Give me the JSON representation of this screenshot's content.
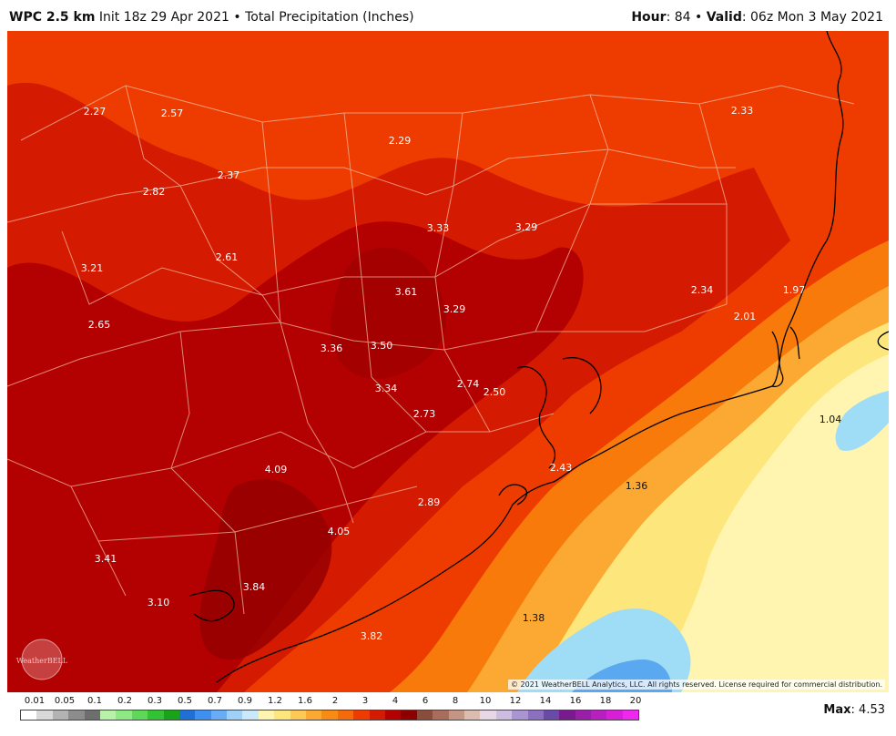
{
  "header": {
    "model": "WPC 2.5 km",
    "init": "Init 18z 29 Apr 2021",
    "bullet": "•",
    "field": "Total Precipitation (Inches)",
    "hour_label": "Hour",
    "hour_value": ": 84",
    "valid_label": "Valid",
    "valid_value": ": 06z Mon 3 May 2021"
  },
  "colors": {
    "dark_red": "#b30000",
    "red": "#d41a00",
    "orange_red": "#ee3b00",
    "orange": "#f77a0a",
    "light_orange": "#fba932",
    "yellow": "#fde77d",
    "pale_yellow": "#fff5b0",
    "light_blue": "#9fdcf5",
    "blue": "#5aa8f0",
    "county_line": "#f3c3a8",
    "coast": "#000000"
  },
  "map": {
    "icon": "precipitation-map",
    "values": [
      {
        "v": "2.27"
      },
      {
        "v": "2.57"
      },
      {
        "v": "2.29"
      },
      {
        "v": "2.33"
      },
      {
        "v": "2.37"
      },
      {
        "v": "2.82"
      },
      {
        "v": "3.33"
      },
      {
        "v": "3.29"
      },
      {
        "v": "3.21"
      },
      {
        "v": "2.61"
      },
      {
        "v": "3.61"
      },
      {
        "v": "3.29"
      },
      {
        "v": "2.34"
      },
      {
        "v": "1.97"
      },
      {
        "v": "2.01"
      },
      {
        "v": "2.65"
      },
      {
        "v": "3.36"
      },
      {
        "v": "3.50"
      },
      {
        "v": "3.34"
      },
      {
        "v": "2.74"
      },
      {
        "v": "2.50"
      },
      {
        "v": "2.73"
      },
      {
        "v": "1.04"
      },
      {
        "v": "4.09"
      },
      {
        "v": "2.43"
      },
      {
        "v": "1.36"
      },
      {
        "v": "2.89"
      },
      {
        "v": "4.05"
      },
      {
        "v": "3.41"
      },
      {
        "v": "3.84"
      },
      {
        "v": "3.10"
      },
      {
        "v": "1.38"
      },
      {
        "v": "3.82"
      }
    ]
  },
  "copyright": "© 2021 WeatherBELL Analytics, LLC. All rights reserved. License required for commercial distribution.",
  "logo_text": "WeatherBELL",
  "legend": {
    "ticks": [
      "0.01",
      "0.05",
      "0.1",
      "0.2",
      "0.3",
      "0.5",
      "0.7",
      "0.9",
      "1.2",
      "1.6",
      "2",
      "3",
      "4",
      "6",
      "8",
      "10",
      "12",
      "14",
      "16",
      "18",
      "20"
    ],
    "swatches": [
      "#ffffff",
      "#d9d9d9",
      "#b3b3b3",
      "#8c8c8c",
      "#6e6e6e",
      "#b8f2a8",
      "#8ee883",
      "#5fd85a",
      "#33c233",
      "#1aa31a",
      "#1f6fd6",
      "#3f8ff0",
      "#68acf5",
      "#9fd0f7",
      "#c9e9fb",
      "#fff5b0",
      "#fde77d",
      "#fcc956",
      "#fba932",
      "#f88b15",
      "#f56a0a",
      "#ee3b00",
      "#d41a00",
      "#b30000",
      "#8e0000",
      "#8a4d3c",
      "#a86d5c",
      "#c49585",
      "#dcbcb0",
      "#e8d8e6",
      "#cdbde0",
      "#a995cf",
      "#8a70bf",
      "#6a4aa8",
      "#7a1a8f",
      "#9a1fa8",
      "#b81fc0",
      "#d61fd6",
      "#ee28ee"
    ]
  },
  "max": {
    "label": "Max",
    "value": ": 4.53"
  }
}
